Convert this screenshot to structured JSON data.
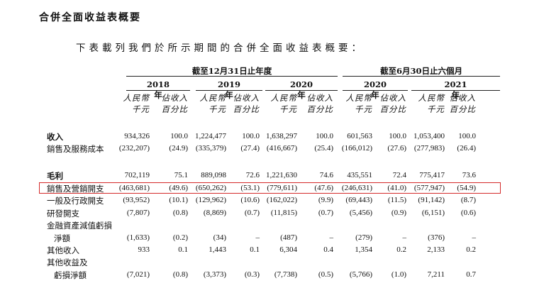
{
  "section_title": "合併全面收益表概要",
  "intro_text": "下表載列我們於所示期間的合併全面收益表概要：",
  "header": {
    "group_year": "截至12月31日止年度",
    "group_half": "截至6月30日止六個月",
    "years": [
      "2018年",
      "2019年",
      "2020年",
      "2020年",
      "2021年"
    ],
    "sub_rmb": [
      "人民幣",
      "千元"
    ],
    "sub_pct": [
      "佔收入",
      "百分比"
    ]
  },
  "rows": [
    {
      "label": "收入",
      "bold": true,
      "values": [
        "934,326",
        "100.0",
        "1,224,477",
        "100.0",
        "1,638,297",
        "100.0",
        "601,563",
        "100.0",
        "1,053,400",
        "100.0"
      ]
    },
    {
      "label": "銷售及服務成本",
      "values": [
        "(232,207)",
        "(24.9)",
        "(335,379)",
        "(27.4)",
        "(416,667)",
        "(25.4)",
        "(166,012)",
        "(27.6)",
        "(277,983)",
        "(26.4)"
      ]
    },
    {
      "label": "毛利",
      "bold": true,
      "values": [
        "702,119",
        "75.1",
        "889,098",
        "72.6",
        "1,221,630",
        "74.6",
        "435,551",
        "72.4",
        "775,417",
        "73.6"
      ]
    },
    {
      "label": "銷售及營銷開支",
      "highlight": true,
      "values": [
        "(463,681)",
        "(49.6)",
        "(650,262)",
        "(53.1)",
        "(779,611)",
        "(47.6)",
        "(246,631)",
        "(41.0)",
        "(577,947)",
        "(54.9)"
      ]
    },
    {
      "label": "一般及行政開支",
      "values": [
        "(93,952)",
        "(10.1)",
        "(129,962)",
        "(10.6)",
        "(162,022)",
        "(9.9)",
        "(69,443)",
        "(11.5)",
        "(91,142)",
        "(8.7)"
      ]
    },
    {
      "label": "研發開支",
      "values": [
        "(7,807)",
        "(0.8)",
        "(8,869)",
        "(0.7)",
        "(11,815)",
        "(0.7)",
        "(5,456)",
        "(0.9)",
        "(6,151)",
        "(0.6)"
      ]
    },
    {
      "label": "金融資產減值虧損",
      "values": [
        "",
        "",
        "",
        "",
        "",
        "",
        "",
        "",
        "",
        ""
      ]
    },
    {
      "label": "淨額",
      "indent": true,
      "values": [
        "(1,633)",
        "(0.2)",
        "(34)",
        "–",
        "(487)",
        "–",
        "(279)",
        "–",
        "(376)",
        "–"
      ]
    },
    {
      "label": "其他收入",
      "values": [
        "933",
        "0.1",
        "1,443",
        "0.1",
        "6,304",
        "0.4",
        "1,354",
        "0.2",
        "2,133",
        "0.2"
      ]
    },
    {
      "label": "其他收益及",
      "values": [
        "",
        "",
        "",
        "",
        "",
        "",
        "",
        "",
        "",
        ""
      ]
    },
    {
      "label": "虧損淨額",
      "indent": true,
      "values": [
        "(7,021)",
        "(0.8)",
        "(3,373)",
        "(0.3)",
        "(7,738)",
        "(0.5)",
        "(5,766)",
        "(1.0)",
        "7,211",
        "0.7"
      ]
    }
  ]
}
